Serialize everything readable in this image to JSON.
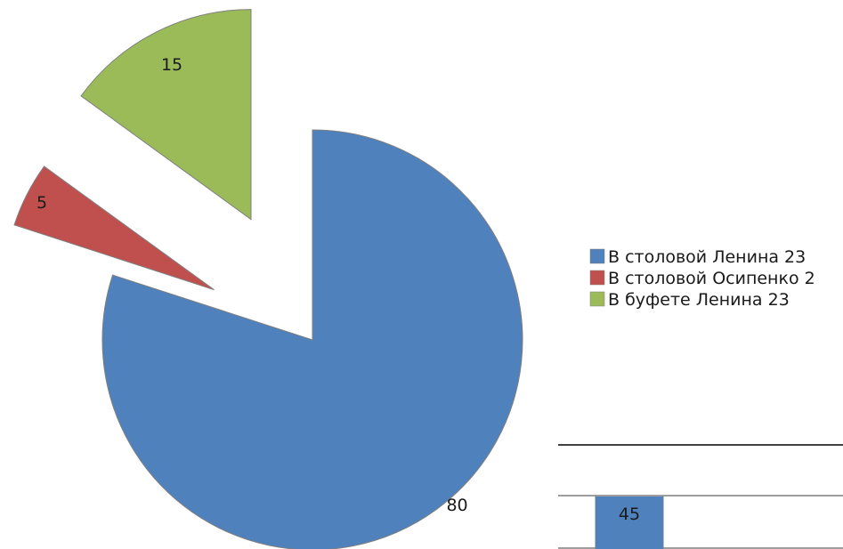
{
  "chart_data": [
    {
      "type": "pie",
      "title": "",
      "categories": [
        "В столовой Ленина 23",
        "В столовой Осипенко 2",
        "В буфете Ленина 23"
      ],
      "values": [
        80,
        5,
        15
      ],
      "colors": [
        "#4f81bd",
        "#c0504d",
        "#9bbb59"
      ],
      "exploded": [
        false,
        true,
        true
      ],
      "legend_position": "right"
    },
    {
      "type": "bar",
      "categories": [
        ""
      ],
      "values": [
        45
      ],
      "colors": [
        "#4f81bd"
      ],
      "partially_visible": true
    }
  ]
}
